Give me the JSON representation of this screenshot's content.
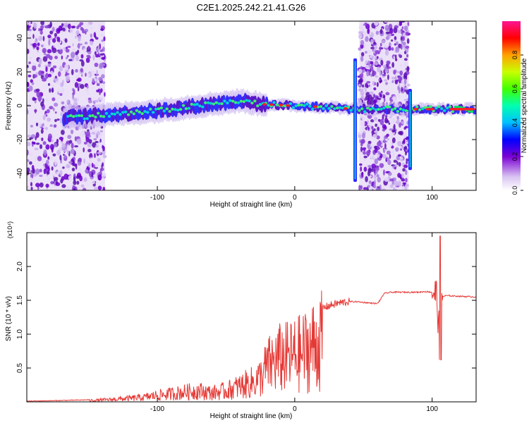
{
  "chart_data": [
    {
      "type": "heatmap",
      "title": "C2E1.2025.242.21.41.G26",
      "xlabel": "Height of straight line (km)",
      "ylabel": "Frequency (Hz)",
      "xlim": [
        -195,
        132
      ],
      "ylim": [
        -50,
        50
      ],
      "xticks": [
        "-100",
        "0",
        "100"
      ],
      "yticks": [
        "40",
        "20",
        "0",
        "-20",
        "-40"
      ],
      "colorbar": {
        "label": "Normalized spectral amplitude",
        "range": [
          0,
          1
        ],
        "ticks": [
          "0.0",
          "0.2",
          "0.4",
          "0.6",
          "0.8"
        ]
      },
      "features": [
        {
          "name": "noise-band-left",
          "x_range": [
            -195,
            -138
          ]
        },
        {
          "name": "noise-band-right",
          "x_range": [
            47,
            83
          ]
        },
        {
          "name": "signal-ridge",
          "points": [
            [
              -168,
              -7
            ],
            [
              -130,
              -5
            ],
            [
              -100,
              -3
            ],
            [
              -70,
              0
            ],
            [
              -40,
              3
            ],
            [
              -25,
              1
            ],
            [
              0,
              0
            ],
            [
              30,
              -1
            ],
            [
              42,
              -2
            ],
            [
              85,
              -2
            ],
            [
              132,
              -2
            ]
          ]
        }
      ]
    },
    {
      "type": "line",
      "title": "",
      "xlabel": "Height of straight line (km)",
      "ylabel": "SNR (10 * v/v)",
      "scale_label": "(x10⁴)",
      "xlim": [
        -195,
        132
      ],
      "ylim": [
        0,
        2.5
      ],
      "xticks": [
        "-100",
        "0",
        "100"
      ],
      "yticks": [
        "0.5",
        "1.0",
        "1.5",
        "2.0"
      ],
      "series": [
        {
          "name": "SNR",
          "color": "#e53935",
          "x": [
            -195,
            -170,
            -150,
            -135,
            -120,
            -110,
            -100,
            -90,
            -80,
            -70,
            -60,
            -50,
            -40,
            -30,
            -25,
            -20,
            -15,
            -10,
            -5,
            0,
            5,
            10,
            15,
            20,
            25,
            30,
            35,
            40,
            45,
            50,
            55,
            60,
            62,
            65,
            70,
            80,
            90,
            95,
            100,
            103,
            105,
            107,
            110,
            120,
            132
          ],
          "values": [
            0.01,
            0.02,
            0.03,
            0.05,
            0.08,
            0.1,
            0.15,
            0.18,
            0.22,
            0.25,
            0.2,
            0.25,
            0.35,
            0.45,
            0.55,
            0.8,
            0.9,
            1.0,
            1.0,
            1.05,
            1.1,
            1.2,
            1.3,
            1.38,
            1.42,
            1.45,
            1.47,
            1.48,
            1.48,
            1.47,
            1.46,
            1.45,
            1.5,
            1.6,
            1.62,
            1.62,
            1.62,
            1.63,
            1.62,
            1.6,
            1.1,
            1.55,
            1.57,
            1.56,
            1.55
          ]
        }
      ]
    }
  ]
}
